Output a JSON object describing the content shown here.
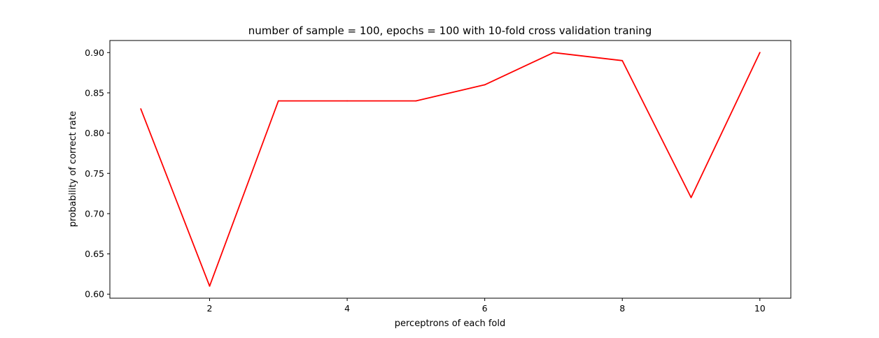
{
  "chart_data": {
    "type": "line",
    "title": "number of sample = 100, epochs = 100 with 10-fold cross validation traning",
    "xlabel": "perceptrons of each fold",
    "ylabel": "probability of correct rate",
    "x": [
      1,
      2,
      3,
      4,
      5,
      6,
      7,
      8,
      9,
      10
    ],
    "series": [
      {
        "values": [
          0.83,
          0.61,
          0.84,
          0.84,
          0.84,
          0.86,
          0.9,
          0.89,
          0.72,
          0.9
        ],
        "color": "#ff0000"
      }
    ],
    "xlim": [
      0.55,
      10.45
    ],
    "ylim": [
      0.595,
      0.915
    ],
    "xticks": [
      2,
      4,
      6,
      8,
      10
    ],
    "xtick_labels": [
      "2",
      "4",
      "6",
      "8",
      "10"
    ],
    "yticks": [
      0.6,
      0.65,
      0.7,
      0.75,
      0.8,
      0.85,
      0.9
    ],
    "ytick_labels": [
      "0.60",
      "0.65",
      "0.70",
      "0.75",
      "0.80",
      "0.85",
      "0.90"
    ],
    "grid": false,
    "legend": "none"
  }
}
